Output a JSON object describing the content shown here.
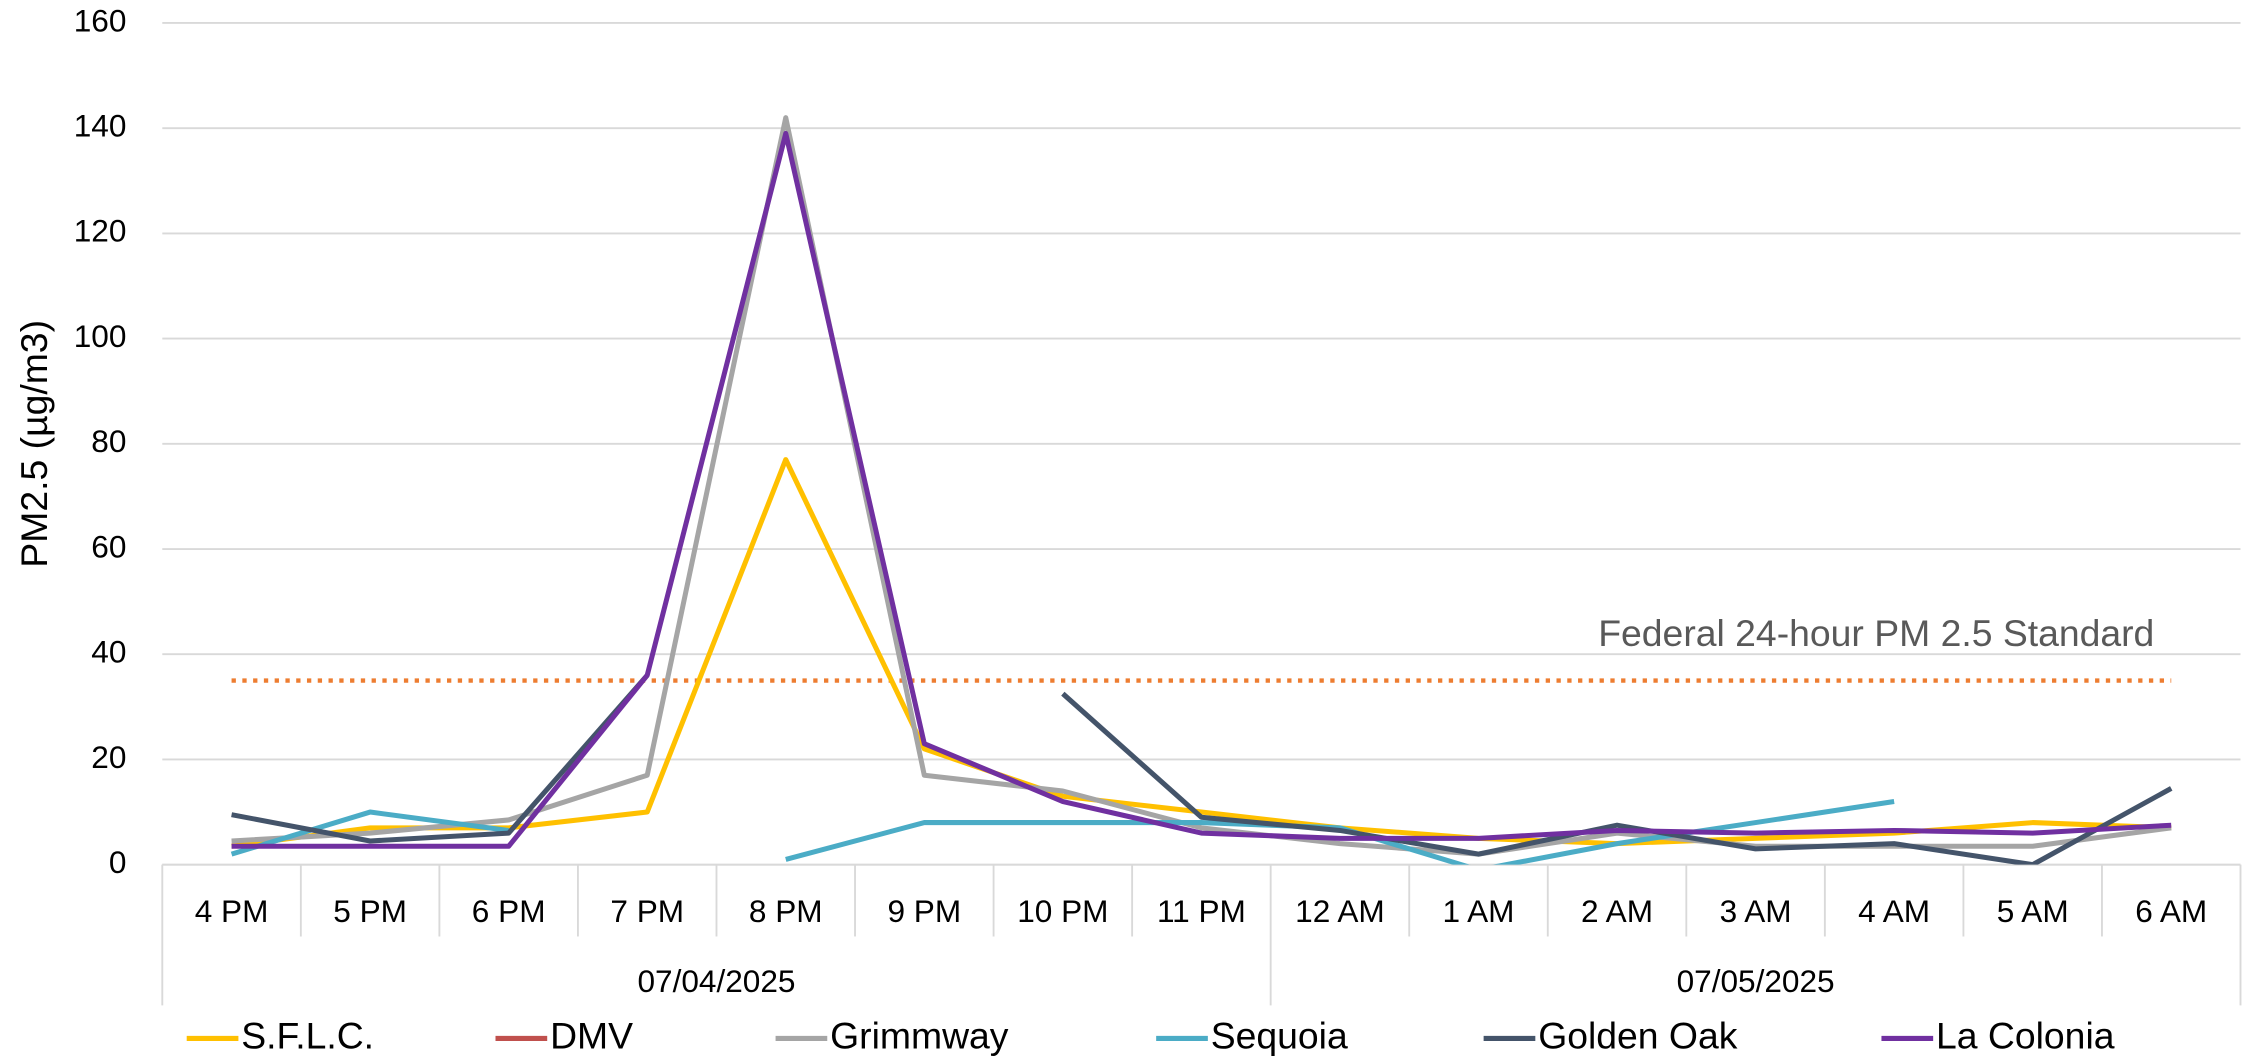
{
  "chart_data": {
    "type": "line",
    "ylabel": "PM2.5 (µg/m3)",
    "categories": [
      "4 PM",
      "5 PM",
      "6 PM",
      "7 PM",
      "8 PM",
      "9 PM",
      "10 PM",
      "11 PM",
      "12 AM",
      "1 AM",
      "2 AM",
      "3 AM",
      "4 AM",
      "5 AM",
      "6 AM"
    ],
    "category_groups": [
      {
        "label": "07/04/2025",
        "count": 8
      },
      {
        "label": "07/05/2025",
        "count": 7
      }
    ],
    "series": [
      {
        "name": "S.F.L.C.",
        "color": "#FFC000",
        "values": [
          3.5,
          7,
          7,
          10,
          77,
          22,
          13,
          10,
          7,
          5,
          4,
          5,
          6,
          8,
          7
        ]
      },
      {
        "name": "DMV",
        "color": "#C0504D",
        "values": [
          null,
          null,
          null,
          null,
          null,
          null,
          null,
          null,
          null,
          null,
          null,
          null,
          null,
          null,
          null
        ]
      },
      {
        "name": "Grimmway",
        "color": "#A5A5A5",
        "values": [
          4.5,
          6,
          8.5,
          17,
          142,
          17,
          14,
          7,
          4,
          2,
          6,
          3.5,
          3.5,
          3.5,
          7
        ]
      },
      {
        "name": "Sequoia",
        "color": "#4BACC6",
        "values": [
          2,
          10,
          6.5,
          null,
          1,
          8,
          8,
          8,
          7,
          -1,
          4,
          8,
          12,
          null,
          null
        ]
      },
      {
        "name": "Golden Oak",
        "color": "#44546A",
        "values": [
          9.5,
          4.5,
          6,
          36,
          null,
          null,
          32.5,
          9,
          6.5,
          2,
          7.5,
          3,
          4,
          0,
          14.5
        ]
      },
      {
        "name": "La Colonia",
        "color": "#7030A0",
        "values": [
          3.5,
          3.5,
          3.5,
          36,
          139,
          23,
          12,
          6,
          5,
          5,
          6.5,
          6,
          6.5,
          6,
          7.5
        ]
      }
    ],
    "reference_line": {
      "label": "Federal 24-hour PM 2.5 Standard",
      "value": 35,
      "color": "#ED7D31"
    },
    "ylim": [
      0,
      160
    ],
    "yticks": [
      0,
      20,
      40,
      60,
      80,
      100,
      120,
      140,
      160
    ],
    "grid": true,
    "legend": "bottom"
  }
}
